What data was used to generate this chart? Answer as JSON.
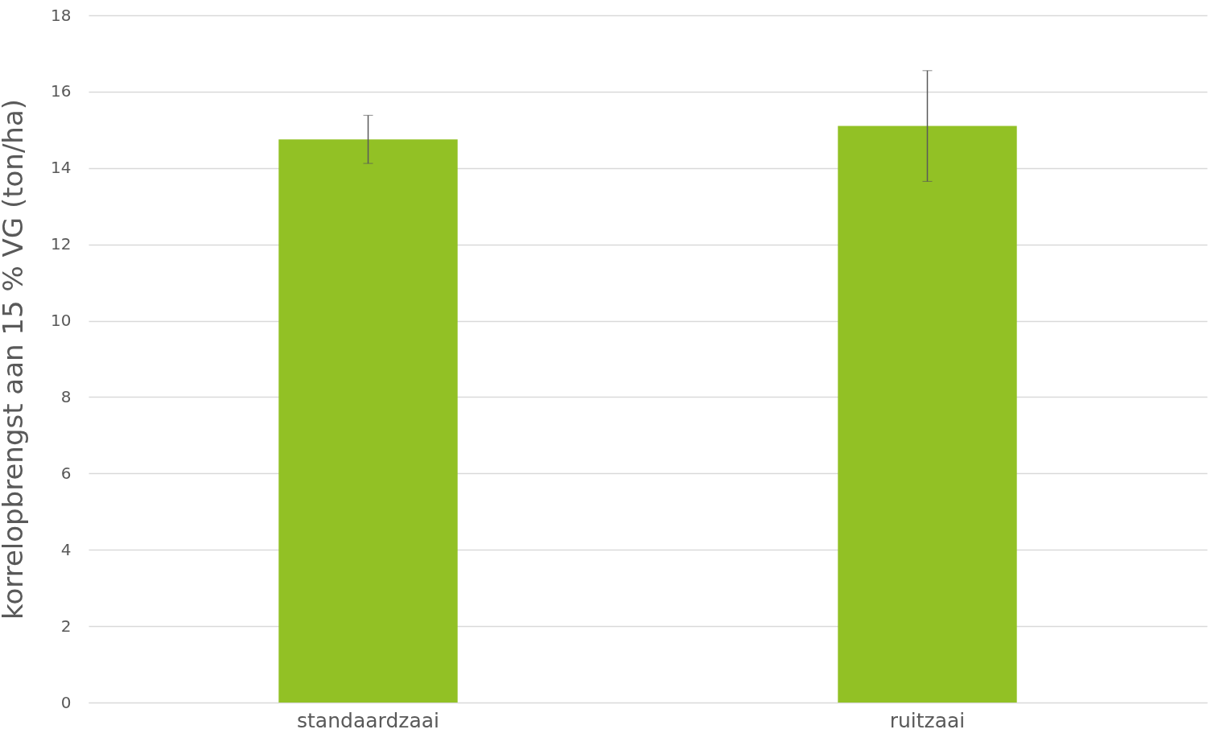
{
  "chart_data": {
    "type": "bar",
    "ylabel": "korrelopbrengst aan 15 % VG (ton/ha)",
    "categories": [
      "standaardzaai",
      "ruitzaai"
    ],
    "values": [
      14.75,
      15.1
    ],
    "errors": [
      0.63,
      1.45
    ],
    "color": "#92c125",
    "ylim": [
      0,
      18
    ],
    "yticks": [
      0,
      2,
      4,
      6,
      8,
      10,
      12,
      14,
      16,
      18
    ],
    "grid": true
  }
}
